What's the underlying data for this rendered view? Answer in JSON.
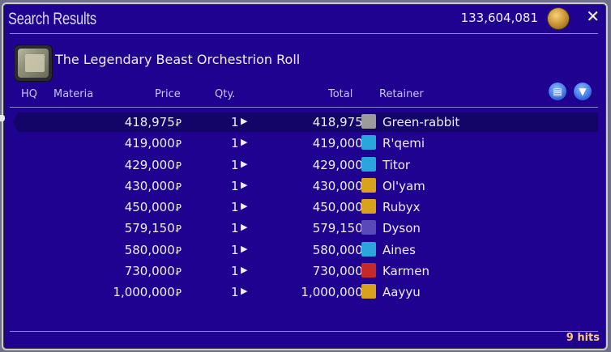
{
  "window": {
    "title": "Search Results",
    "gil_balance": "133,604,081",
    "close_label": "✕"
  },
  "item": {
    "name": "The Legendary Beast Orchestrion Roll"
  },
  "columns": {
    "hq": "HQ",
    "materia": "Materia",
    "price": "Price",
    "qty": "Qty.",
    "total": "Total",
    "retainer": "Retainer"
  },
  "header_icons": {
    "list": "▤",
    "filter": "▼"
  },
  "currency_symbol": "Ꝑ",
  "listings": [
    {
      "price": "418,975",
      "qty": "1",
      "total": "418,975",
      "retainer": "Green-rabbit",
      "city_icon": "whirl-icon",
      "icon_color": "#9c9c9c",
      "selected": true
    },
    {
      "price": "419,000",
      "qty": "1",
      "total": "419,000",
      "retainer": "R'qemi",
      "city_icon": "tower-icon",
      "icon_color": "#2aa6dc"
    },
    {
      "price": "429,000",
      "qty": "1",
      "total": "429,000",
      "retainer": "Titor",
      "city_icon": "tower-icon",
      "icon_color": "#2aa6dc"
    },
    {
      "price": "430,000",
      "qty": "1",
      "total": "430,000",
      "retainer": "Ol'yam",
      "city_icon": "crest-icon",
      "icon_color": "#d9a21c"
    },
    {
      "price": "450,000",
      "qty": "1",
      "total": "450,000",
      "retainer": "Rubyx",
      "city_icon": "crest-icon",
      "icon_color": "#d9a21c"
    },
    {
      "price": "579,150",
      "qty": "1",
      "total": "579,150",
      "retainer": "Dyson",
      "city_icon": "shield-icon",
      "icon_color": "#5a4ab8"
    },
    {
      "price": "580,000",
      "qty": "1",
      "total": "580,000",
      "retainer": "Aines",
      "city_icon": "tower-icon",
      "icon_color": "#2aa6dc"
    },
    {
      "price": "730,000",
      "qty": "1",
      "total": "730,000",
      "retainer": "Karmen",
      "city_icon": "ship-icon",
      "icon_color": "#c42a2a"
    },
    {
      "price": "1,000,000",
      "qty": "1",
      "total": "1,000,000",
      "retainer": "Aayyu",
      "city_icon": "crest-icon",
      "icon_color": "#d9a21c"
    }
  ],
  "footer": {
    "hits": "9 hits"
  }
}
